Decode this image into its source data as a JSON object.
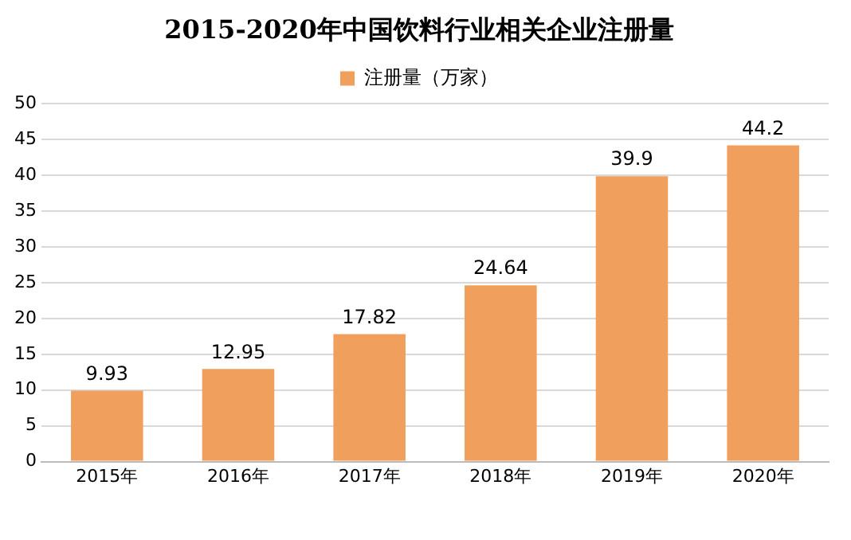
{
  "chart_data": {
    "type": "bar",
    "title": "2015-2020年中国饮料行业相关企业注册量",
    "categories": [
      "2015年",
      "2016年",
      "2017年",
      "2018年",
      "2019年",
      "2020年"
    ],
    "series": [
      {
        "name": "注册量（万家）",
        "color": "#f0a05c",
        "values": [
          9.93,
          12.95,
          17.82,
          24.64,
          39.9,
          44.2
        ]
      }
    ],
    "ylim": [
      0,
      50
    ],
    "yticks": [
      0,
      5,
      10,
      15,
      20,
      25,
      30,
      35,
      40,
      45,
      50
    ],
    "grid": "y",
    "legend": "top",
    "data_labels": true
  }
}
